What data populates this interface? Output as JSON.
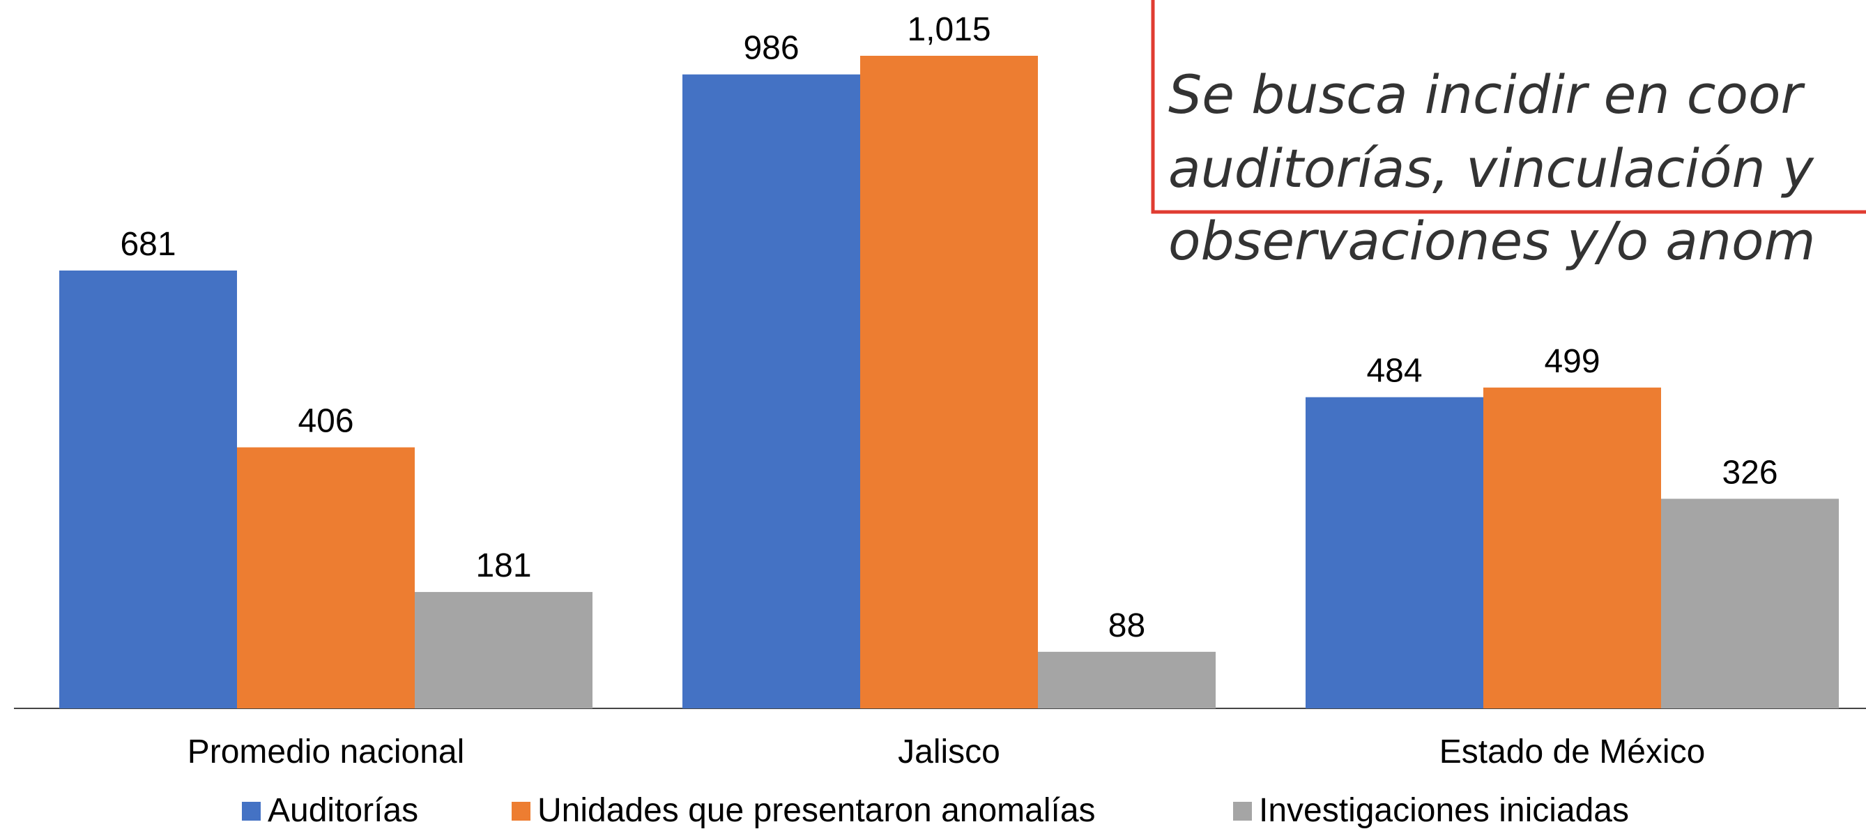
{
  "chart_data": {
    "type": "bar",
    "categories": [
      "Promedio nacional",
      "Jalisco",
      "Estado de México"
    ],
    "series": [
      {
        "name": "Auditorías",
        "color": "#4472c4",
        "values": [
          681,
          986,
          484
        ]
      },
      {
        "name": "Unidades que presentaron anomalías",
        "color": "#ed7d31",
        "values": [
          406,
          1015,
          499
        ],
        "value_labels": [
          "406",
          "1,015",
          "499"
        ]
      },
      {
        "name": "Investigaciones iniciadas",
        "color": "#a5a5a5",
        "values": [
          181,
          88,
          326
        ]
      }
    ],
    "legend": "bottom",
    "annotation": [
      "Se busca incidir en coor",
      "auditorías, vinculación y",
      "observaciones y/o anom"
    ]
  }
}
